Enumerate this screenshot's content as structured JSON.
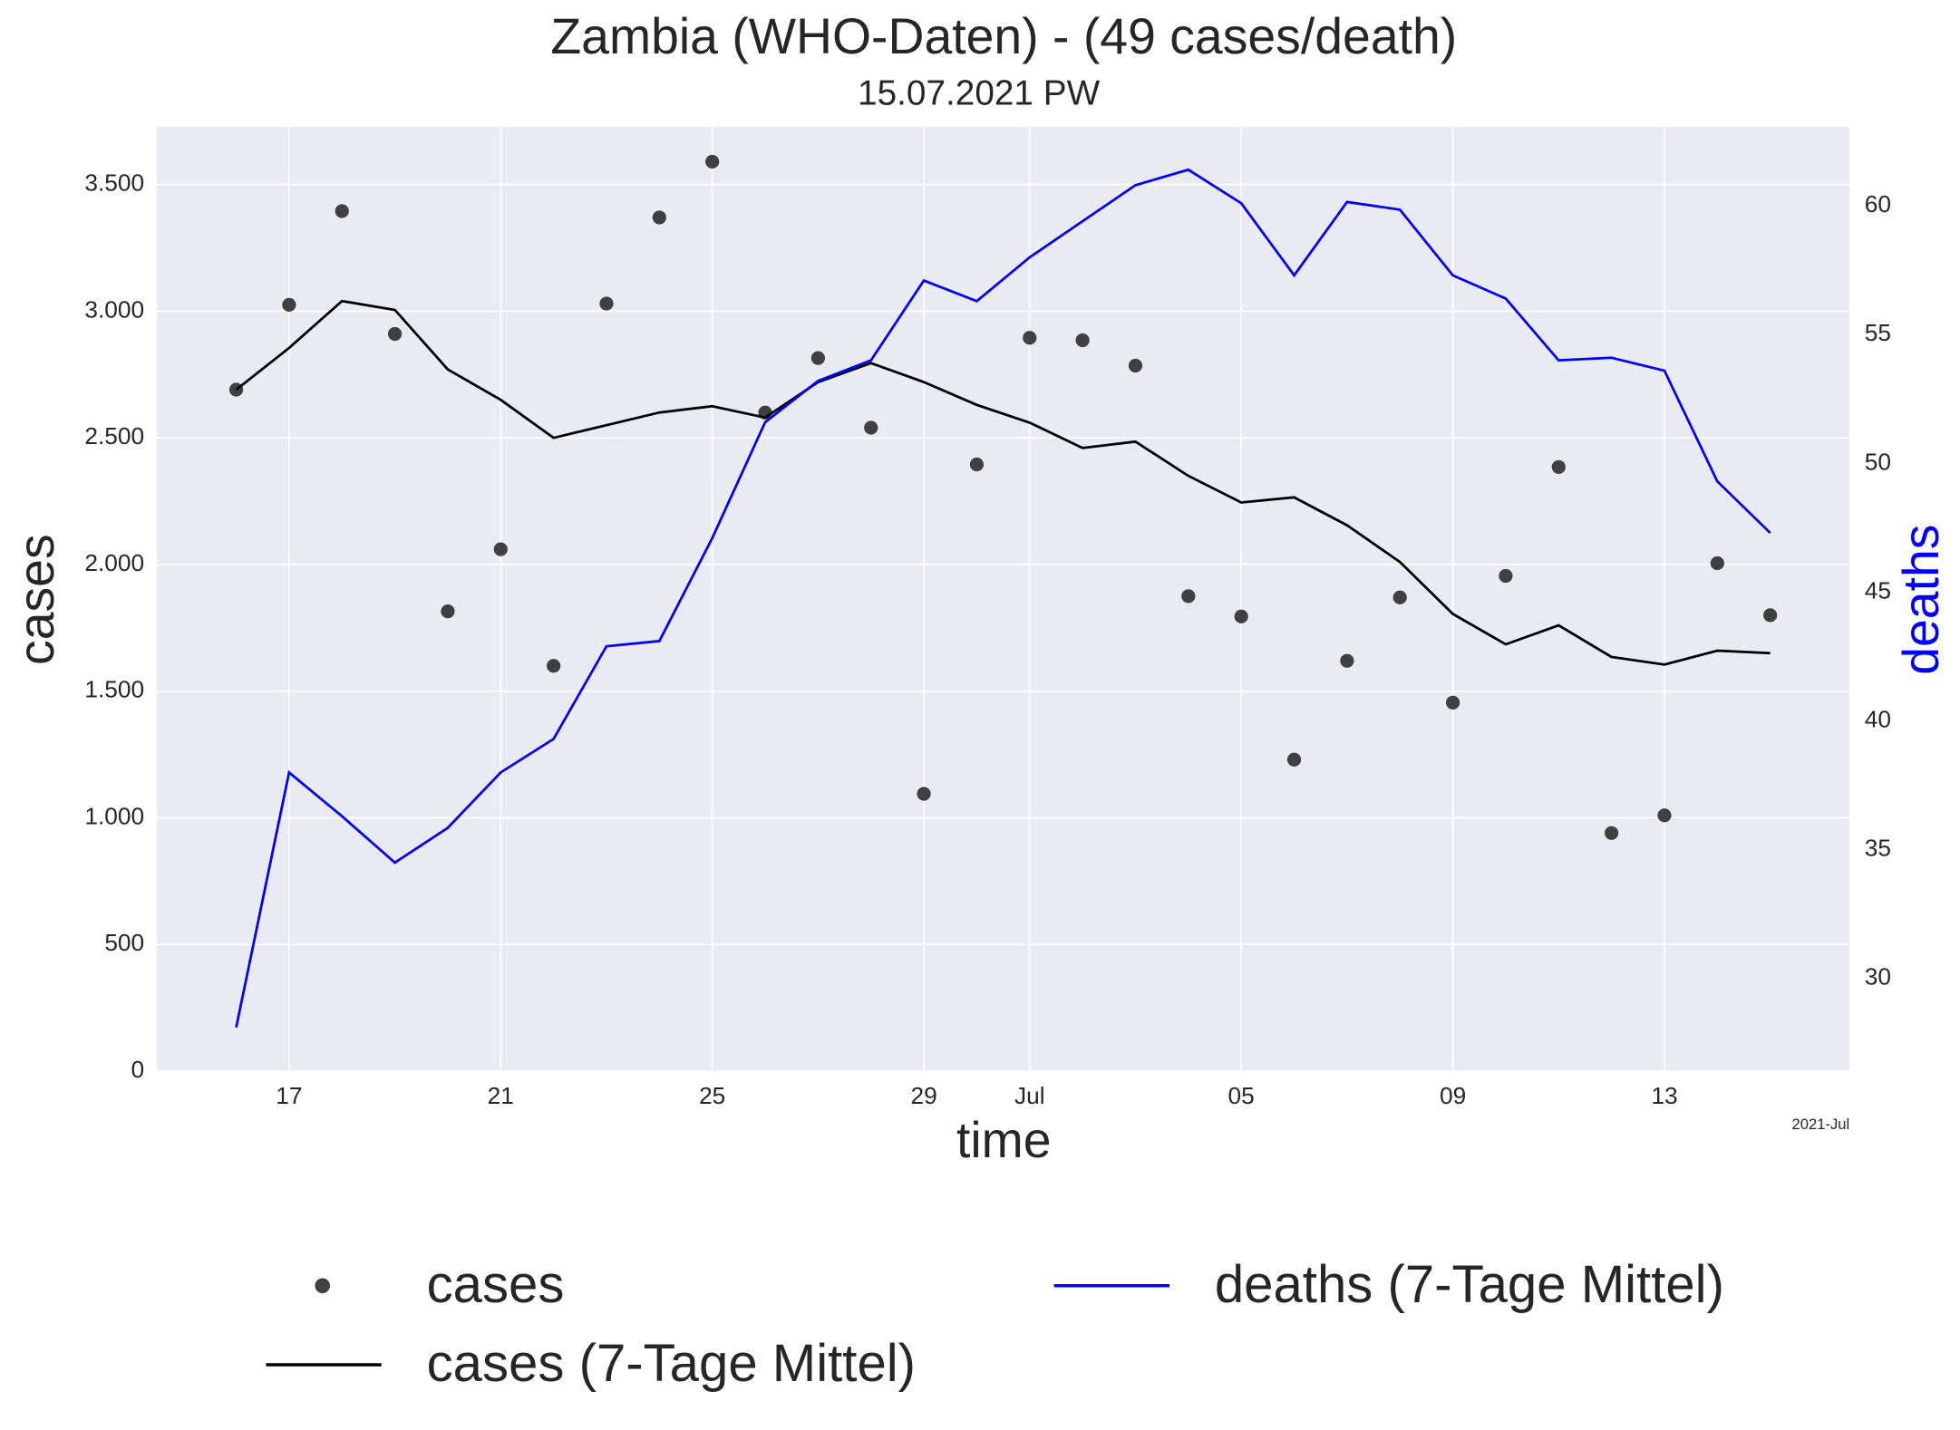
{
  "chart_data": {
    "type": "line",
    "title": "Zambia (WHO-Daten) - (49 cases/death)",
    "subtitle": "15.07.2021 PW",
    "x_label": "time",
    "y_label": "cases",
    "y2_label": "deaths",
    "x_offset_label": "2021-Jul",
    "x": [
      "2021-06-16",
      "2021-06-17",
      "2021-06-18",
      "2021-06-19",
      "2021-06-20",
      "2021-06-21",
      "2021-06-22",
      "2021-06-23",
      "2021-06-24",
      "2021-06-25",
      "2021-06-26",
      "2021-06-27",
      "2021-06-28",
      "2021-06-29",
      "2021-06-30",
      "2021-07-01",
      "2021-07-02",
      "2021-07-03",
      "2021-07-04",
      "2021-07-05",
      "2021-07-06",
      "2021-07-07",
      "2021-07-08",
      "2021-07-09",
      "2021-07-10",
      "2021-07-11",
      "2021-07-12",
      "2021-07-13",
      "2021-07-14",
      "2021-07-15"
    ],
    "xlim": [
      "2021-06-14T12:00",
      "2021-07-16T12:00"
    ],
    "xticks": [
      {
        "value": "2021-06-17",
        "label": "17"
      },
      {
        "value": "2021-06-21",
        "label": "21"
      },
      {
        "value": "2021-06-25",
        "label": "25"
      },
      {
        "value": "2021-06-29",
        "label": "29"
      },
      {
        "value": "2021-07-01",
        "label": "Jul"
      },
      {
        "value": "2021-07-05",
        "label": "05"
      },
      {
        "value": "2021-07-09",
        "label": "09"
      },
      {
        "value": "2021-07-13",
        "label": "13"
      }
    ],
    "ylim": [
      0,
      3728
    ],
    "yticks": [
      0,
      500,
      {
        "value": 1000,
        "label": "1.000"
      },
      {
        "value": 1500,
        "label": "1.500"
      },
      {
        "value": 2000,
        "label": "2.000"
      },
      {
        "value": 2500,
        "label": "2.500"
      },
      {
        "value": 3000,
        "label": "3.000"
      },
      {
        "value": 3500,
        "label": "3.500"
      }
    ],
    "y2lim": [
      26.4,
      63.07
    ],
    "y2ticks": [
      30,
      35,
      40,
      45,
      50,
      55,
      60
    ],
    "grid": true,
    "series": [
      {
        "name": "cases",
        "color": "#404040",
        "style": "markers",
        "values": [
          2690,
          3025,
          3395,
          2910,
          1815,
          2060,
          1600,
          3030,
          3370,
          3590,
          2600,
          2815,
          2540,
          1095,
          2395,
          2895,
          2885,
          2785,
          1875,
          1795,
          1230,
          1620,
          1870,
          1455,
          1955,
          2385,
          940,
          1010,
          2005,
          1800
        ]
      },
      {
        "name": "cases (7-Tage Mittel)",
        "color": "#000000",
        "style": "line",
        "values": [
          2690,
          2855,
          3040,
          3005,
          2770,
          2650,
          2500,
          2550,
          2600,
          2625,
          2580,
          2720,
          2795,
          2720,
          2630,
          2560,
          2460,
          2485,
          2350,
          2245,
          2265,
          2155,
          2010,
          1805,
          1685,
          1760,
          1635,
          1605,
          1660,
          1650
        ]
      },
      {
        "name": "deaths (7-Tage Mittel)",
        "color": "#0000ff",
        "style": "line",
        "axis": "y2",
        "values": [
          28.1,
          38.0,
          36.3,
          34.5,
          35.85,
          38.0,
          39.3,
          42.9,
          43.1,
          47.1,
          51.6,
          53.2,
          54.0,
          57.1,
          56.3,
          58.0,
          59.4,
          60.8,
          61.4,
          60.1,
          57.3,
          60.15,
          59.85,
          57.3,
          56.4,
          54.0,
          54.1,
          53.6,
          49.3,
          47.3
        ]
      }
    ]
  }
}
